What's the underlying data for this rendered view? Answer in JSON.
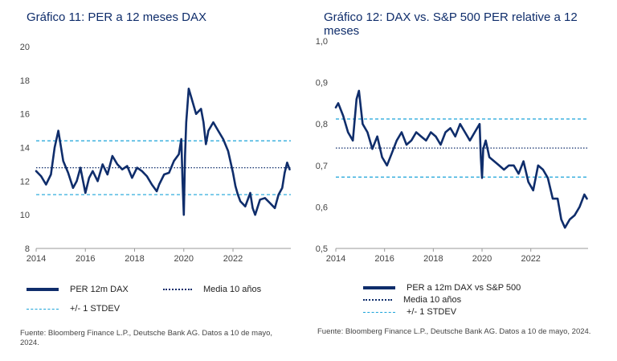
{
  "chart_data": [
    {
      "type": "line",
      "title": "Gráfico 11: PER a 12 meses DAX",
      "ylim": [
        8,
        20
      ],
      "yticks": [
        "8",
        "10",
        "12",
        "14",
        "16",
        "18",
        "20"
      ],
      "xlim": [
        2014,
        2024.35
      ],
      "xticks": [
        "2014",
        "2016",
        "2018",
        "2020",
        "2022"
      ],
      "reference_lines": {
        "mean": 12.8,
        "upper": 14.4,
        "lower": 11.2
      },
      "series": [
        {
          "name": "PER 12m DAX",
          "x": [
            2014.0,
            2014.2,
            2014.4,
            2014.6,
            2014.75,
            2014.9,
            2015.1,
            2015.3,
            2015.5,
            2015.65,
            2015.8,
            2016.0,
            2016.15,
            2016.3,
            2016.5,
            2016.7,
            2016.9,
            2017.1,
            2017.3,
            2017.5,
            2017.7,
            2017.9,
            2018.1,
            2018.3,
            2018.5,
            2018.7,
            2018.9,
            2019.0,
            2019.2,
            2019.4,
            2019.6,
            2019.8,
            2019.9,
            2019.95,
            2020.0,
            2020.05,
            2020.1,
            2020.2,
            2020.3,
            2020.5,
            2020.7,
            2020.8,
            2020.9,
            2021.0,
            2021.2,
            2021.4,
            2021.6,
            2021.8,
            2022.0,
            2022.1,
            2022.2,
            2022.3,
            2022.5,
            2022.7,
            2022.8,
            2022.9,
            2023.1,
            2023.3,
            2023.5,
            2023.7,
            2023.85,
            2024.0,
            2024.1,
            2024.2,
            2024.3
          ],
          "values": [
            12.6,
            12.3,
            11.8,
            12.4,
            14.0,
            15.0,
            13.2,
            12.5,
            11.6,
            12.0,
            12.8,
            11.3,
            12.2,
            12.6,
            12.0,
            13.0,
            12.4,
            13.5,
            13.0,
            12.7,
            12.9,
            12.2,
            12.8,
            12.6,
            12.3,
            11.8,
            11.4,
            11.8,
            12.4,
            12.5,
            13.2,
            13.6,
            14.5,
            12.0,
            10.0,
            13.5,
            15.5,
            17.5,
            17.0,
            16.0,
            16.3,
            15.5,
            14.2,
            15.0,
            15.5,
            15.0,
            14.5,
            13.8,
            12.5,
            11.7,
            11.2,
            10.8,
            10.5,
            11.3,
            10.4,
            10.0,
            10.9,
            11.0,
            10.7,
            10.4,
            11.2,
            11.6,
            12.5,
            13.1,
            12.7
          ]
        }
      ],
      "legend": [
        "PER 12m DAX",
        "Media 10 años",
        "+/- 1 STDEV"
      ],
      "source": "Fuente: Bloomberg Finance L.P., Deutsche Bank AG. Datos a 10 de mayo, 2024."
    },
    {
      "type": "line",
      "title": "Gráfico 12: DAX vs. S&P 500 PER relative a 12 meses",
      "ylim": [
        0.5,
        1.0
      ],
      "yticks": [
        "0,5",
        "0,6",
        "0,7",
        "0,8",
        "0,9",
        "1,0"
      ],
      "xlim": [
        2014,
        2024.35
      ],
      "xticks": [
        "2014",
        "2016",
        "2018",
        "2020",
        "2022"
      ],
      "reference_lines": {
        "mean": 0.742,
        "upper": 0.812,
        "lower": 0.672
      },
      "series": [
        {
          "name": "PER a 12m DAX vs S&P 500",
          "x": [
            2014.0,
            2014.1,
            2014.3,
            2014.5,
            2014.7,
            2014.85,
            2014.95,
            2015.1,
            2015.3,
            2015.5,
            2015.7,
            2015.9,
            2016.1,
            2016.3,
            2016.5,
            2016.7,
            2016.9,
            2017.1,
            2017.3,
            2017.5,
            2017.7,
            2017.9,
            2018.1,
            2018.3,
            2018.5,
            2018.7,
            2018.9,
            2019.1,
            2019.3,
            2019.5,
            2019.7,
            2019.9,
            2019.95,
            2020.0,
            2020.05,
            2020.15,
            2020.3,
            2020.5,
            2020.7,
            2020.9,
            2021.1,
            2021.3,
            2021.5,
            2021.7,
            2021.9,
            2022.1,
            2022.3,
            2022.5,
            2022.7,
            2022.9,
            2023.1,
            2023.25,
            2023.4,
            2023.6,
            2023.8,
            2024.0,
            2024.2,
            2024.3
          ],
          "values": [
            0.84,
            0.85,
            0.82,
            0.78,
            0.76,
            0.86,
            0.88,
            0.8,
            0.78,
            0.74,
            0.77,
            0.72,
            0.7,
            0.73,
            0.76,
            0.78,
            0.75,
            0.76,
            0.78,
            0.77,
            0.76,
            0.78,
            0.77,
            0.75,
            0.78,
            0.79,
            0.77,
            0.8,
            0.78,
            0.76,
            0.78,
            0.8,
            0.72,
            0.67,
            0.74,
            0.76,
            0.72,
            0.71,
            0.7,
            0.69,
            0.7,
            0.7,
            0.68,
            0.71,
            0.66,
            0.64,
            0.7,
            0.69,
            0.67,
            0.62,
            0.62,
            0.57,
            0.55,
            0.57,
            0.58,
            0.6,
            0.63,
            0.62
          ]
        }
      ],
      "legend": [
        "PER a 12m DAX vs S&P 500",
        "Media 10 años",
        "+/- 1 STDEV"
      ],
      "source": "Fuente: Bloomberg Finance L.P., Deutsche Bank AG. Datos a 10 de mayo, 2024."
    }
  ],
  "colors": {
    "line": "#0f2d6b",
    "dashed": "#1aa3d9",
    "axis": "#999999",
    "title": "#0f2d6b"
  }
}
